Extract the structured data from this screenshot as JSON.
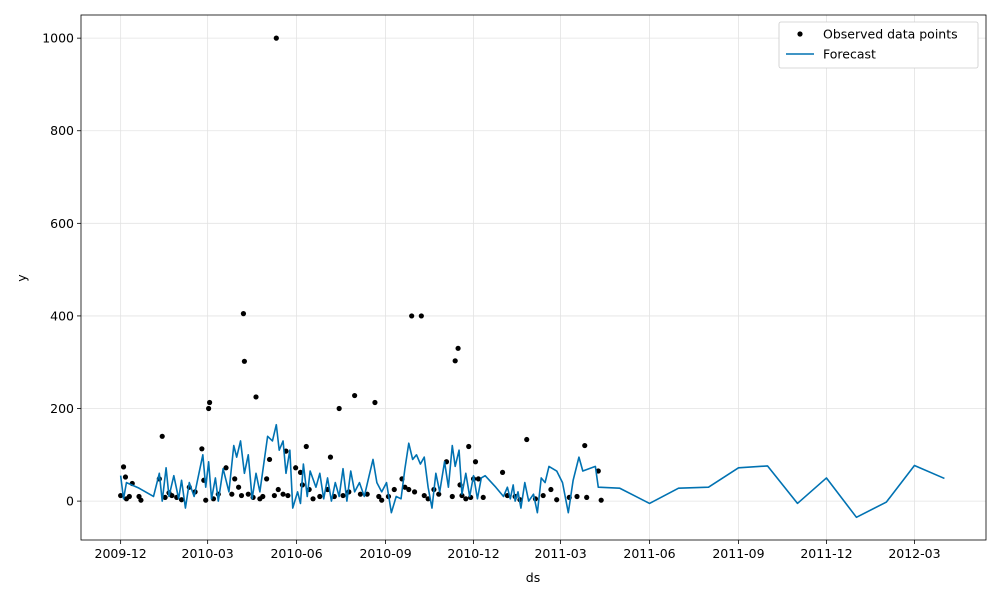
{
  "chart_data": {
    "type": "line",
    "x_label": "ds",
    "y_label": "y",
    "xlim": [
      "2009-10-21",
      "2012-05-14"
    ],
    "xticks": [
      {
        "value": "2009-12-01",
        "label": "2009-12"
      },
      {
        "value": "2010-03-01",
        "label": "2010-03"
      },
      {
        "value": "2010-06-01",
        "label": "2010-06"
      },
      {
        "value": "2010-09-01",
        "label": "2010-09"
      },
      {
        "value": "2010-12-01",
        "label": "2010-12"
      },
      {
        "value": "2011-03-01",
        "label": "2011-03"
      },
      {
        "value": "2011-06-01",
        "label": "2011-06"
      },
      {
        "value": "2011-09-01",
        "label": "2011-09"
      },
      {
        "value": "2011-12-01",
        "label": "2011-12"
      },
      {
        "value": "2012-03-01",
        "label": "2012-03"
      }
    ],
    "ylim": [
      -84,
      1050
    ],
    "yticks": [
      0,
      200,
      400,
      600,
      800,
      1000
    ],
    "grid": true,
    "legend": "upper right",
    "series": [
      {
        "name": "Observed data points",
        "style": "points",
        "color": "#000000",
        "x": [
          "2009-12-01",
          "2009-12-04",
          "2009-12-06",
          "2009-12-07",
          "2009-12-10",
          "2009-12-13",
          "2009-12-20",
          "2009-12-22",
          "2010-01-10",
          "2010-01-13",
          "2010-01-16",
          "2010-01-20",
          "2010-01-23",
          "2010-01-28",
          "2010-02-02",
          "2010-02-10",
          "2010-02-16",
          "2010-02-23",
          "2010-02-25",
          "2010-02-27",
          "2010-03-02",
          "2010-03-03",
          "2010-03-07",
          "2010-03-12",
          "2010-03-20",
          "2010-03-26",
          "2010-03-29",
          "2010-04-02",
          "2010-04-05",
          "2010-04-07",
          "2010-04-08",
          "2010-04-12",
          "2010-04-17",
          "2010-04-20",
          "2010-04-24",
          "2010-04-27",
          "2010-05-01",
          "2010-05-04",
          "2010-05-09",
          "2010-05-11",
          "2010-05-13",
          "2010-05-18",
          "2010-05-21",
          "2010-05-23",
          "2010-05-31",
          "2010-06-05",
          "2010-06-07",
          "2010-06-11",
          "2010-06-14",
          "2010-06-18",
          "2010-06-25",
          "2010-07-03",
          "2010-07-06",
          "2010-07-10",
          "2010-07-15",
          "2010-07-19",
          "2010-07-25",
          "2010-07-31",
          "2010-08-06",
          "2010-08-13",
          "2010-08-21",
          "2010-08-25",
          "2010-08-28",
          "2010-09-04",
          "2010-09-10",
          "2010-09-18",
          "2010-09-21",
          "2010-09-25",
          "2010-09-28",
          "2010-10-01",
          "2010-10-08",
          "2010-10-11",
          "2010-10-15",
          "2010-10-21",
          "2010-10-26",
          "2010-11-03",
          "2010-11-09",
          "2010-11-12",
          "2010-11-15",
          "2010-11-17",
          "2010-11-19",
          "2010-11-23",
          "2010-11-26",
          "2010-11-28",
          "2010-12-01",
          "2010-12-03",
          "2010-12-06",
          "2010-12-11",
          "2010-12-31",
          "2011-01-05",
          "2011-01-13",
          "2011-01-18",
          "2011-01-25",
          "2011-02-03",
          "2011-02-11",
          "2011-02-19",
          "2011-02-25",
          "2011-03-10",
          "2011-03-18",
          "2011-03-26",
          "2011-03-28",
          "2011-04-09",
          "2011-04-12"
        ],
        "values": [
          12,
          74,
          52,
          5,
          10,
          38,
          10,
          2,
          48,
          140,
          8,
          18,
          12,
          8,
          3,
          30,
          20,
          113,
          45,
          2,
          200,
          213,
          5,
          15,
          72,
          15,
          48,
          30,
          12,
          405,
          302,
          15,
          8,
          225,
          5,
          10,
          48,
          90,
          12,
          1000,
          25,
          15,
          108,
          12,
          72,
          62,
          35,
          118,
          25,
          5,
          10,
          25,
          95,
          10,
          200,
          12,
          20,
          228,
          15,
          15,
          213,
          10,
          2,
          10,
          25,
          48,
          30,
          25,
          400,
          20,
          400,
          12,
          5,
          25,
          15,
          85,
          10,
          303,
          330,
          35,
          12,
          5,
          118,
          8,
          48,
          85,
          48,
          8,
          62,
          12,
          10,
          3,
          133,
          5,
          12,
          25,
          3,
          8,
          10,
          120,
          8,
          65,
          2
        ]
      },
      {
        "name": "Forecast",
        "style": "line",
        "color": "#0072B2",
        "x": [
          "2009-12-01",
          "2009-12-04",
          "2009-12-07",
          "2009-12-20",
          "2010-01-04",
          "2010-01-10",
          "2010-01-13",
          "2010-01-17",
          "2010-01-20",
          "2010-01-25",
          "2010-01-30",
          "2010-02-02",
          "2010-02-06",
          "2010-02-10",
          "2010-02-15",
          "2010-02-20",
          "2010-02-24",
          "2010-02-27",
          "2010-03-02",
          "2010-03-05",
          "2010-03-09",
          "2010-03-12",
          "2010-03-17",
          "2010-03-23",
          "2010-03-28",
          "2010-03-31",
          "2010-04-04",
          "2010-04-08",
          "2010-04-12",
          "2010-04-16",
          "2010-04-20",
          "2010-04-24",
          "2010-04-28",
          "2010-05-02",
          "2010-05-07",
          "2010-05-11",
          "2010-05-14",
          "2010-05-18",
          "2010-05-21",
          "2010-05-25",
          "2010-05-28",
          "2010-06-02",
          "2010-06-05",
          "2010-06-08",
          "2010-06-12",
          "2010-06-15",
          "2010-06-21",
          "2010-06-25",
          "2010-06-29",
          "2010-07-03",
          "2010-07-07",
          "2010-07-11",
          "2010-07-15",
          "2010-07-19",
          "2010-07-23",
          "2010-07-27",
          "2010-07-31",
          "2010-08-05",
          "2010-08-10",
          "2010-08-15",
          "2010-08-19",
          "2010-08-23",
          "2010-08-28",
          "2010-09-02",
          "2010-09-07",
          "2010-09-12",
          "2010-09-17",
          "2010-09-21",
          "2010-09-25",
          "2010-09-29",
          "2010-10-03",
          "2010-10-07",
          "2010-10-11",
          "2010-10-15",
          "2010-10-19",
          "2010-10-23",
          "2010-10-27",
          "2010-11-01",
          "2010-11-05",
          "2010-11-09",
          "2010-11-12",
          "2010-11-16",
          "2010-11-19",
          "2010-11-23",
          "2010-11-27",
          "2010-12-01",
          "2010-12-05",
          "2010-12-09",
          "2010-12-13",
          "2010-12-24",
          "2011-01-01",
          "2011-01-05",
          "2011-01-08",
          "2011-01-11",
          "2011-01-13",
          "2011-01-16",
          "2011-01-19",
          "2011-01-23",
          "2011-01-27",
          "2011-02-01",
          "2011-02-05",
          "2011-02-09",
          "2011-02-13",
          "2011-02-17",
          "2011-02-25",
          "2011-03-03",
          "2011-03-09",
          "2011-03-14",
          "2011-03-20",
          "2011-03-24",
          "2011-04-06",
          "2011-04-09",
          "2011-05-01",
          "2011-06-01",
          "2011-07-01",
          "2011-08-01",
          "2011-09-01",
          "2011-10-01",
          "2011-11-01",
          "2011-12-01",
          "2012-01-01",
          "2012-02-01",
          "2012-03-01",
          "2012-04-01"
        ],
        "values": [
          55,
          5,
          40,
          28,
          10,
          60,
          0,
          72,
          10,
          55,
          5,
          45,
          -15,
          40,
          10,
          60,
          100,
          30,
          85,
          5,
          50,
          0,
          70,
          20,
          120,
          95,
          130,
          60,
          100,
          5,
          60,
          20,
          80,
          140,
          130,
          165,
          110,
          130,
          60,
          110,
          -15,
          20,
          -5,
          80,
          10,
          65,
          30,
          60,
          5,
          50,
          0,
          40,
          10,
          70,
          0,
          65,
          20,
          40,
          10,
          55,
          90,
          40,
          20,
          40,
          -25,
          10,
          5,
          70,
          125,
          90,
          100,
          80,
          95,
          30,
          -15,
          60,
          20,
          85,
          30,
          120,
          75,
          110,
          15,
          60,
          10,
          55,
          5,
          50,
          55,
          30,
          10,
          30,
          5,
          35,
          0,
          20,
          -15,
          40,
          0,
          15,
          -25,
          50,
          40,
          75,
          65,
          40,
          -25,
          45,
          95,
          65,
          75,
          30,
          28,
          -5,
          28,
          30,
          72,
          76,
          -5,
          50,
          -35,
          -2,
          77,
          49
        ]
      }
    ]
  }
}
